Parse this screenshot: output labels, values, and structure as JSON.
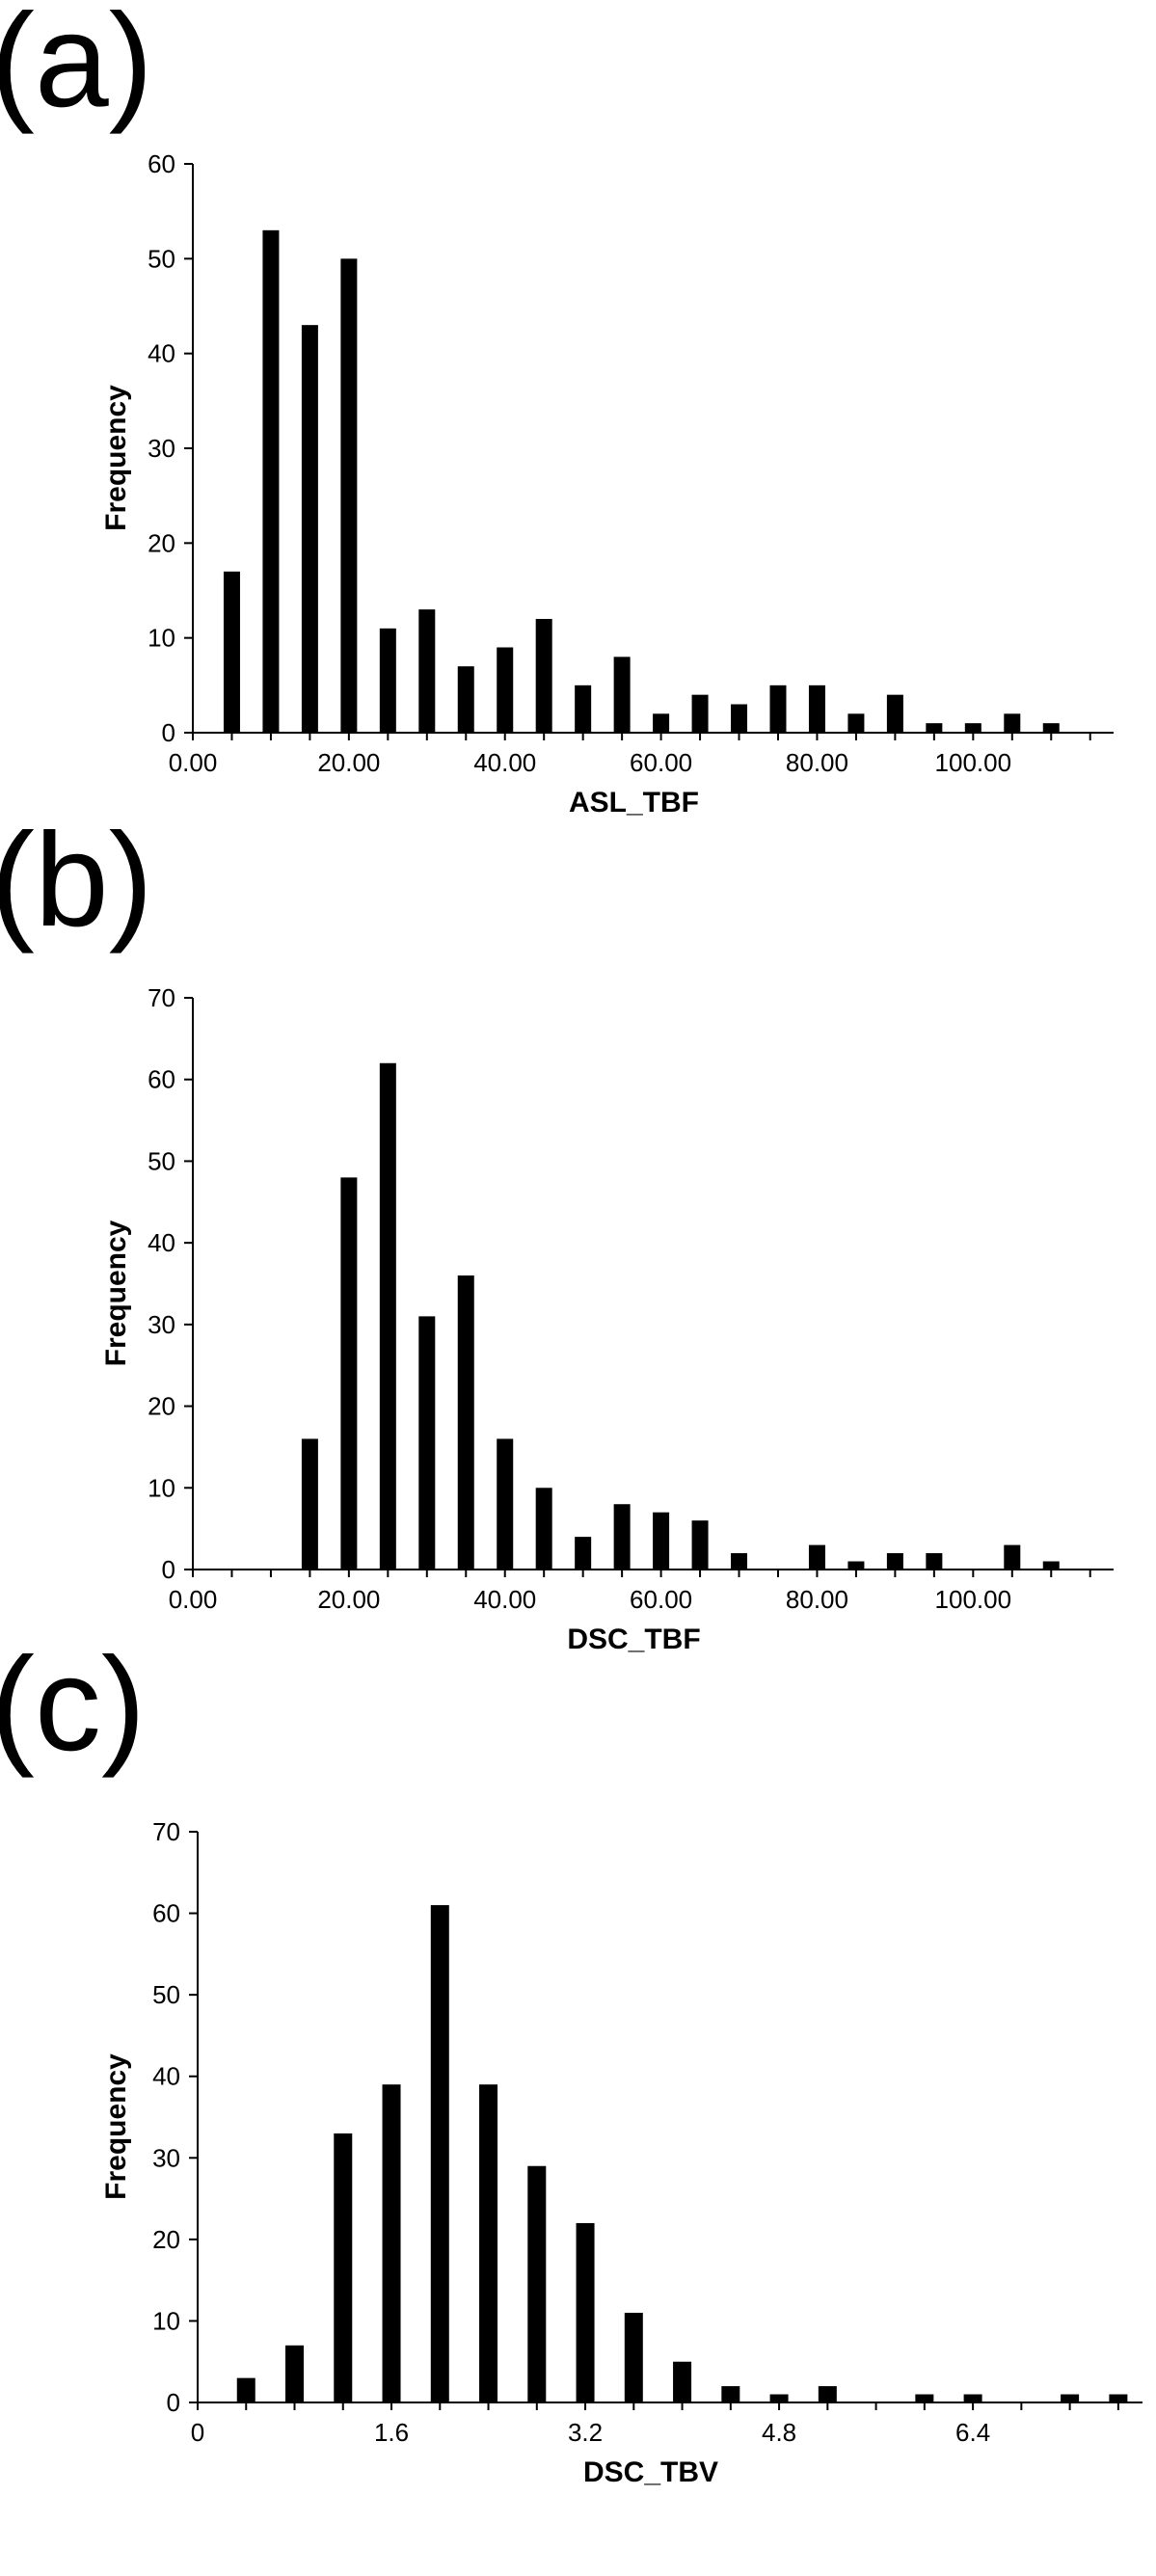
{
  "colors": {
    "bar": "#000000",
    "axis": "#000000",
    "background": "#ffffff"
  },
  "chart_data": [
    {
      "panel_label": "(a)",
      "type": "bar",
      "xlabel": "ASL_TBF",
      "ylabel": "Frequency",
      "ylim": [
        0,
        60
      ],
      "yticks": [
        "0",
        "10",
        "20",
        "30",
        "40",
        "50",
        "60"
      ],
      "xlim": [
        0,
        118
      ],
      "xticks": [
        {
          "value": 0,
          "label": "0.00"
        },
        {
          "value": 20,
          "label": "20.00"
        },
        {
          "value": 40,
          "label": "40.00"
        },
        {
          "value": 60,
          "label": "60.00"
        },
        {
          "value": 80,
          "label": "80.00"
        },
        {
          "value": 100,
          "label": "100.00"
        }
      ],
      "x": [
        5,
        10,
        15,
        20,
        25,
        30,
        35,
        40,
        45,
        50,
        55,
        60,
        65,
        70,
        75,
        80,
        85,
        90,
        95,
        100,
        105,
        110
      ],
      "values": [
        17,
        53,
        43,
        50,
        11,
        13,
        7,
        9,
        12,
        5,
        8,
        2,
        4,
        3,
        5,
        5,
        2,
        4,
        1,
        1,
        2,
        1
      ],
      "grid": false
    },
    {
      "panel_label": "(b)",
      "type": "bar",
      "xlabel": "DSC_TBF",
      "ylabel": "Frequency",
      "ylim": [
        0,
        70
      ],
      "yticks": [
        "0",
        "10",
        "20",
        "30",
        "40",
        "50",
        "60",
        "70"
      ],
      "xlim": [
        0,
        118
      ],
      "xticks": [
        {
          "value": 0,
          "label": "0.00"
        },
        {
          "value": 20,
          "label": "20.00"
        },
        {
          "value": 40,
          "label": "40.00"
        },
        {
          "value": 60,
          "label": "60.00"
        },
        {
          "value": 80,
          "label": "80.00"
        },
        {
          "value": 100,
          "label": "100.00"
        }
      ],
      "x": [
        5,
        10,
        15,
        20,
        25,
        30,
        35,
        40,
        45,
        50,
        55,
        60,
        65,
        70,
        75,
        80,
        85,
        90,
        95,
        100,
        105,
        110
      ],
      "values": [
        0,
        0,
        16,
        48,
        62,
        31,
        36,
        16,
        10,
        4,
        8,
        7,
        6,
        2,
        0,
        3,
        1,
        2,
        2,
        0,
        3,
        1
      ],
      "grid": false
    },
    {
      "panel_label": "(c)",
      "type": "bar",
      "xlabel": "DSC_TBV",
      "ylabel": "Frequency",
      "ylim": [
        0,
        70
      ],
      "yticks": [
        "0",
        "10",
        "20",
        "30",
        "40",
        "50",
        "60",
        "70"
      ],
      "xlim": [
        0,
        7.8
      ],
      "xticks": [
        {
          "value": 0,
          "label": "0"
        },
        {
          "value": 1.6,
          "label": "1.6"
        },
        {
          "value": 3.2,
          "label": "3.2"
        },
        {
          "value": 4.8,
          "label": "4.8"
        },
        {
          "value": 6.4,
          "label": "6.4"
        }
      ],
      "x": [
        0.4,
        0.8,
        1.2,
        1.6,
        2.0,
        2.4,
        2.8,
        3.2,
        3.6,
        4.0,
        4.4,
        4.8,
        5.2,
        5.6,
        6.0,
        6.4,
        6.8,
        7.2,
        7.6
      ],
      "values": [
        3,
        7,
        33,
        39,
        61,
        39,
        29,
        22,
        11,
        5,
        2,
        1,
        2,
        0,
        1,
        1,
        0,
        1,
        1
      ],
      "grid": false
    }
  ]
}
